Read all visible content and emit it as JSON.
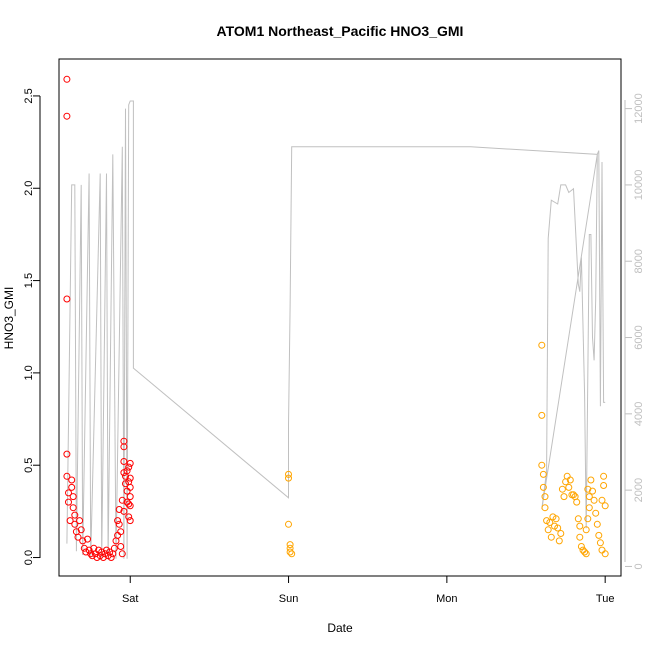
{
  "chart_data": {
    "type": "scatter",
    "title": "ATOM1 Northeast_Pacific HNO3_GMI",
    "xlabel": "Date",
    "ylabel": "HNO3_GMI",
    "x_ticks": [
      "Sat",
      "Sun",
      "Mon",
      "Tue"
    ],
    "xlim": [
      -0.45,
      3.1
    ],
    "ylim_left": [
      -0.1,
      2.7
    ],
    "y_ticks_left": [
      "0.0",
      "0.5",
      "1.0",
      "1.5",
      "2.0",
      "2.5"
    ],
    "y_tick_values_left": [
      0,
      0.5,
      1.0,
      1.5,
      2.0,
      2.5
    ],
    "ylim_right": [
      -250,
      13300
    ],
    "y_ticks_right": [
      "0",
      "2000",
      "4000",
      "6000",
      "8000",
      "10000",
      "12000"
    ],
    "y_tick_values_right": [
      0,
      2000,
      4000,
      6000,
      8000,
      10000,
      12000
    ],
    "grid": false,
    "colors": {
      "series_a": "#ff0000",
      "series_b": "#ffa500",
      "altitude_line": "#c0c0c0",
      "axis": "#000000",
      "right_axis": "#bfbfbf"
    },
    "series": [
      {
        "axis": "left",
        "color": "#ff0000",
        "points": [
          [
            -0.4,
            2.59
          ],
          [
            -0.4,
            2.39
          ],
          [
            -0.4,
            1.4
          ],
          [
            -0.4,
            0.56
          ],
          [
            -0.4,
            0.44
          ],
          [
            -0.39,
            0.35
          ],
          [
            -0.39,
            0.3
          ],
          [
            -0.38,
            0.2
          ],
          [
            -0.37,
            0.42
          ],
          [
            -0.37,
            0.38
          ],
          [
            -0.36,
            0.33
          ],
          [
            -0.36,
            0.27
          ],
          [
            -0.35,
            0.23
          ],
          [
            -0.35,
            0.18
          ],
          [
            -0.34,
            0.14
          ],
          [
            -0.33,
            0.11
          ],
          [
            -0.32,
            0.2
          ],
          [
            -0.31,
            0.15
          ],
          [
            -0.3,
            0.09
          ],
          [
            -0.29,
            0.05
          ],
          [
            -0.28,
            0.03
          ],
          [
            -0.27,
            0.1
          ],
          [
            -0.26,
            0.04
          ],
          [
            -0.25,
            0.02
          ],
          [
            -0.24,
            0.01
          ],
          [
            -0.23,
            0.05
          ],
          [
            -0.22,
            0.02
          ],
          [
            -0.21,
            0.0
          ],
          [
            -0.2,
            0.04
          ],
          [
            -0.19,
            0.01
          ],
          [
            -0.18,
            0.03
          ],
          [
            -0.17,
            0.0
          ],
          [
            -0.16,
            0.02
          ],
          [
            -0.15,
            0.04
          ],
          [
            -0.14,
            0.01
          ],
          [
            -0.13,
            0.03
          ],
          [
            -0.12,
            0.0
          ],
          [
            -0.11,
            0.02
          ],
          [
            -0.1,
            0.05
          ],
          [
            -0.09,
            0.09
          ],
          [
            -0.08,
            0.12
          ],
          [
            -0.08,
            0.2
          ],
          [
            -0.07,
            0.26
          ],
          [
            -0.07,
            0.18
          ],
          [
            -0.06,
            0.14
          ],
          [
            -0.06,
            0.06
          ],
          [
            -0.05,
            0.02
          ],
          [
            -0.05,
            0.31
          ],
          [
            -0.04,
            0.25
          ],
          [
            -0.04,
            0.6
          ],
          [
            -0.04,
            0.63
          ],
          [
            -0.04,
            0.52
          ],
          [
            -0.04,
            0.46
          ],
          [
            -0.03,
            0.44
          ],
          [
            -0.03,
            0.4
          ],
          [
            -0.02,
            0.47
          ],
          [
            -0.02,
            0.36
          ],
          [
            -0.02,
            0.3
          ],
          [
            -0.01,
            0.49
          ],
          [
            -0.01,
            0.41
          ],
          [
            -0.01,
            0.22
          ],
          [
            -0.01,
            0.29
          ],
          [
            0.0,
            0.51
          ],
          [
            0.0,
            0.43
          ],
          [
            0.0,
            0.38
          ],
          [
            0.0,
            0.33
          ],
          [
            0.0,
            0.28
          ],
          [
            0.0,
            0.2
          ]
        ]
      },
      {
        "axis": "left",
        "color": "#ffa500",
        "points": [
          [
            1.0,
            0.45
          ],
          [
            1.0,
            0.43
          ],
          [
            1.0,
            0.18
          ],
          [
            1.01,
            0.07
          ],
          [
            1.01,
            0.05
          ],
          [
            1.01,
            0.03
          ],
          [
            1.02,
            0.02
          ],
          [
            2.6,
            1.15
          ],
          [
            2.6,
            0.77
          ],
          [
            2.6,
            0.5
          ],
          [
            2.61,
            0.45
          ],
          [
            2.61,
            0.38
          ],
          [
            2.62,
            0.33
          ],
          [
            2.62,
            0.27
          ],
          [
            2.63,
            0.2
          ],
          [
            2.64,
            0.15
          ],
          [
            2.65,
            0.19
          ],
          [
            2.66,
            0.11
          ],
          [
            2.67,
            0.22
          ],
          [
            2.68,
            0.17
          ],
          [
            2.69,
            0.21
          ],
          [
            2.7,
            0.16
          ],
          [
            2.71,
            0.09
          ],
          [
            2.72,
            0.13
          ],
          [
            2.73,
            0.37
          ],
          [
            2.74,
            0.33
          ],
          [
            2.75,
            0.41
          ],
          [
            2.76,
            0.44
          ],
          [
            2.77,
            0.38
          ],
          [
            2.78,
            0.42
          ],
          [
            2.79,
            0.34
          ],
          [
            2.8,
            0.34
          ],
          [
            2.81,
            0.33
          ],
          [
            2.82,
            0.3
          ],
          [
            2.83,
            0.21
          ],
          [
            2.84,
            0.17
          ],
          [
            2.84,
            0.11
          ],
          [
            2.85,
            0.06
          ],
          [
            2.86,
            0.04
          ],
          [
            2.87,
            0.03
          ],
          [
            2.88,
            0.02
          ],
          [
            2.88,
            0.15
          ],
          [
            2.89,
            0.21
          ],
          [
            2.89,
            0.37
          ],
          [
            2.9,
            0.33
          ],
          [
            2.9,
            0.27
          ],
          [
            2.91,
            0.42
          ],
          [
            2.92,
            0.36
          ],
          [
            2.93,
            0.31
          ],
          [
            2.94,
            0.24
          ],
          [
            2.95,
            0.18
          ],
          [
            2.96,
            0.12
          ],
          [
            2.97,
            0.08
          ],
          [
            2.98,
            0.31
          ],
          [
            2.98,
            0.04
          ],
          [
            2.99,
            0.44
          ],
          [
            2.99,
            0.39
          ],
          [
            3.0,
            0.02
          ],
          [
            3.0,
            0.28
          ]
        ]
      },
      {
        "axis": "right",
        "type": "line",
        "color": "#c0c0c0",
        "points": [
          [
            -0.4,
            600
          ],
          [
            -0.37,
            10000
          ],
          [
            -0.35,
            10000
          ],
          [
            -0.34,
            400
          ],
          [
            -0.31,
            10000
          ],
          [
            -0.3,
            300
          ],
          [
            -0.26,
            10300
          ],
          [
            -0.25,
            200
          ],
          [
            -0.19,
            10300
          ],
          [
            -0.18,
            200
          ],
          [
            -0.15,
            10300
          ],
          [
            -0.14,
            200
          ],
          [
            -0.11,
            10800
          ],
          [
            -0.09,
            200
          ],
          [
            -0.05,
            11000
          ],
          [
            -0.04,
            200
          ],
          [
            -0.03,
            12000
          ],
          [
            -0.02,
            200
          ],
          [
            -0.01,
            12100
          ],
          [
            0.0,
            12200
          ],
          [
            0.02,
            12200
          ],
          [
            0.02,
            5200
          ],
          [
            1.0,
            1800
          ],
          [
            1.0,
            3700
          ],
          [
            1.01,
            6800
          ],
          [
            1.02,
            11000
          ],
          [
            1.05,
            11000
          ],
          [
            2.15,
            11000
          ],
          [
            2.95,
            10800
          ],
          [
            2.6,
            1500
          ],
          [
            2.63,
            2500
          ],
          [
            2.64,
            8600
          ],
          [
            2.66,
            9600
          ],
          [
            2.7,
            9500
          ],
          [
            2.72,
            10000
          ],
          [
            2.75,
            10000
          ],
          [
            2.77,
            9800
          ],
          [
            2.8,
            9900
          ],
          [
            2.83,
            7400
          ],
          [
            2.84,
            7200
          ],
          [
            2.85,
            8100
          ],
          [
            2.87,
            4500
          ],
          [
            2.88,
            1000
          ],
          [
            2.9,
            8700
          ],
          [
            2.91,
            8700
          ],
          [
            2.92,
            6000
          ],
          [
            2.93,
            5400
          ],
          [
            2.94,
            7000
          ],
          [
            2.95,
            10800
          ],
          [
            2.96,
            10900
          ],
          [
            2.97,
            4200
          ],
          [
            2.98,
            10600
          ],
          [
            2.99,
            4300
          ],
          [
            3.0,
            4300
          ]
        ]
      }
    ]
  }
}
